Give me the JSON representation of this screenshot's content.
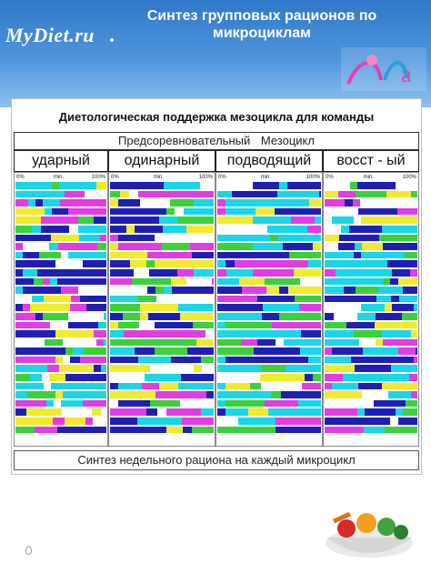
{
  "header": {
    "logo_prefix": "My",
    "logo_main": "Diet.ru",
    "title": "Синтез групповых рационов по микроциклам"
  },
  "figure": {
    "title": "Диетологическая поддержка мезоцикла для команды",
    "subhead_left": "Предсоревновательный",
    "subhead_right": "Мезоцикл",
    "phases": [
      "ударный",
      "одинарный",
      "подводящий",
      "восст - ый"
    ],
    "scale": {
      "start": "0%",
      "end": "100%",
      "mid": "min."
    },
    "footer": "Синтез недельного рациона на каждый микроцикл"
  },
  "colors": {
    "blue": "#1f1fb4",
    "cyan": "#19d7e6",
    "green": "#3ad13a",
    "magenta": "#e23ce2",
    "yellow": "#f0ec2c",
    "white": "#ffffff"
  },
  "icons": {
    "decor": "stylized-figure-icon",
    "bowl": "vegetable-bowl-icon"
  }
}
